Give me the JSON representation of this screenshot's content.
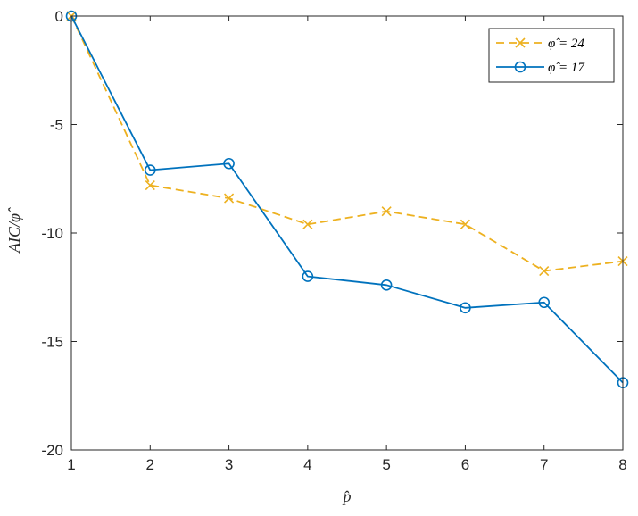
{
  "chart_data": {
    "type": "line",
    "title": "",
    "xlabel": "p̂",
    "ylabel": "AIC/φ̂",
    "x": [
      1,
      2,
      3,
      4,
      5,
      6,
      7,
      8
    ],
    "xlim": [
      1,
      8
    ],
    "ylim": [
      -20,
      0
    ],
    "xticks": [
      "1",
      "2",
      "3",
      "4",
      "5",
      "6",
      "7",
      "8"
    ],
    "yticks": [
      "0",
      "-5",
      "-10",
      "-15",
      "-20"
    ],
    "grid": false,
    "legend_position": "top-right",
    "series": [
      {
        "name": "φ̂ = 24",
        "values": [
          0,
          -7.8,
          -8.4,
          -9.6,
          -9.0,
          -9.6,
          -11.75,
          -11.3
        ],
        "color": "#EDB120",
        "line_style": "dashed",
        "marker": "x"
      },
      {
        "name": "φ̂ = 17",
        "values": [
          0,
          -7.1,
          -6.8,
          -12.0,
          -12.4,
          -13.45,
          -13.2,
          -16.9
        ],
        "color": "#0072BD",
        "line_style": "solid",
        "marker": "circle"
      }
    ]
  }
}
